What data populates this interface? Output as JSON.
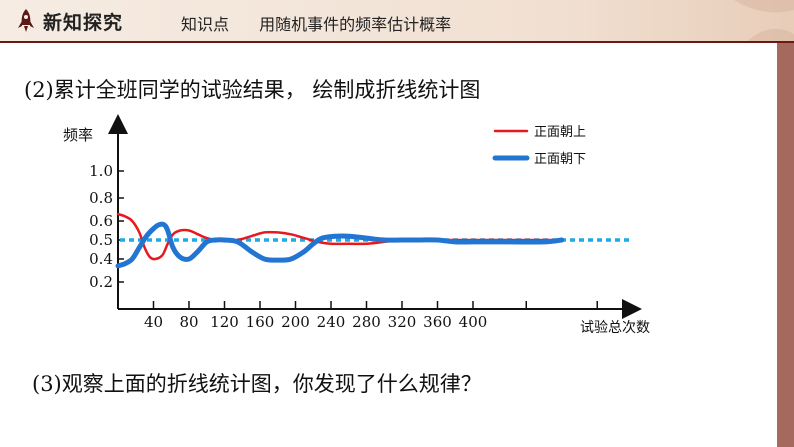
{
  "header": {
    "section_title": "新知探究",
    "topic": "知识点  用随机事件的频率估计概率"
  },
  "question_2": "(2)累计全班同学的试验结果， 绘制成折线统计图",
  "question_3": "(3)观察上面的折线统计图，你发现了什么规律？",
  "chart_data": {
    "type": "line",
    "ylabel": "频率",
    "xlabel": "试验总次数",
    "x_ticks": [
      40,
      80,
      120,
      160,
      200,
      240,
      280,
      320,
      360,
      400
    ],
    "y_ticks": [
      "0.2",
      "0.4",
      "0.5",
      "0.6",
      "0.8",
      "1.0"
    ],
    "xlim": [
      0,
      540
    ],
    "reference_line": 0.5,
    "series": [
      {
        "name": "正面朝上",
        "color": "#e8191e",
        "x": [
          0,
          8,
          16,
          24,
          30,
          36,
          42,
          50,
          56,
          62,
          70,
          80,
          90,
          100,
          110,
          120,
          135,
          150,
          165,
          180,
          195,
          210,
          225,
          240,
          260,
          280,
          300,
          320,
          350,
          380,
          420,
          460,
          480,
          500
        ],
        "y": [
          0.66,
          0.64,
          0.6,
          0.54,
          0.46,
          0.41,
          0.4,
          0.42,
          0.48,
          0.53,
          0.55,
          0.55,
          0.53,
          0.51,
          0.5,
          0.5,
          0.5,
          0.52,
          0.54,
          0.54,
          0.53,
          0.51,
          0.49,
          0.48,
          0.48,
          0.48,
          0.49,
          0.5,
          0.5,
          0.5,
          0.5,
          0.5,
          0.5,
          0.5
        ]
      },
      {
        "name": "正面朝下",
        "color": "#2276d2",
        "x": [
          0,
          8,
          16,
          24,
          32,
          40,
          46,
          52,
          56,
          62,
          70,
          80,
          90,
          100,
          110,
          120,
          135,
          150,
          165,
          180,
          195,
          210,
          220,
          230,
          245,
          260,
          280,
          300,
          320,
          340,
          360,
          380,
          400,
          440,
          480,
          500
        ],
        "y": [
          0.34,
          0.36,
          0.4,
          0.46,
          0.52,
          0.56,
          0.58,
          0.58,
          0.55,
          0.46,
          0.41,
          0.4,
          0.44,
          0.49,
          0.5,
          0.5,
          0.49,
          0.44,
          0.4,
          0.39,
          0.4,
          0.44,
          0.48,
          0.51,
          0.52,
          0.52,
          0.51,
          0.5,
          0.5,
          0.5,
          0.5,
          0.49,
          0.49,
          0.49,
          0.49,
          0.5
        ]
      }
    ]
  }
}
